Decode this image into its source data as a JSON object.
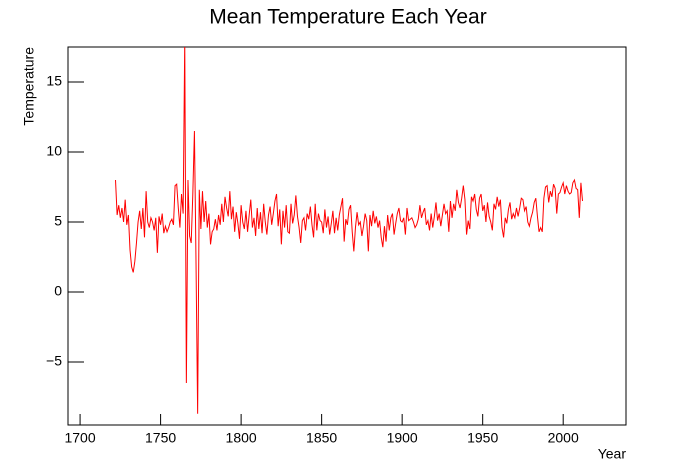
{
  "chart_data": {
    "type": "line",
    "title": "Mean Temperature Each Year",
    "x_label": "Year",
    "y_label": "Temperature",
    "xlim": [
      1692.5,
      2039
    ],
    "ylim": [
      -9.5,
      17.5
    ],
    "xticks": [
      1700,
      1750,
      1800,
      1850,
      1900,
      1950,
      2000
    ],
    "yticks": [
      {
        "value": -5,
        "label": "−5"
      },
      0,
      5,
      10,
      15
    ],
    "series": [
      {
        "color": "#ff0000",
        "x": [
          1722,
          1723,
          1724,
          1725,
          1726,
          1727,
          1728,
          1729,
          1730,
          1731,
          1732,
          1733,
          1734,
          1735,
          1736,
          1737,
          1738,
          1739,
          1740,
          1741,
          1742,
          1743,
          1744,
          1745,
          1746,
          1747,
          1748,
          1749,
          1750,
          1751,
          1752,
          1753,
          1754,
          1755,
          1756,
          1757,
          1758,
          1759,
          1760,
          1761,
          1762,
          1763,
          1764,
          1765,
          1766,
          1767,
          1768,
          1769,
          1770,
          1771,
          1772,
          1773,
          1774,
          1775,
          1776,
          1777,
          1778,
          1779,
          1780,
          1781,
          1782,
          1783,
          1784,
          1785,
          1786,
          1787,
          1788,
          1789,
          1790,
          1791,
          1792,
          1793,
          1794,
          1795,
          1796,
          1797,
          1798,
          1799,
          1800,
          1801,
          1802,
          1803,
          1804,
          1805,
          1806,
          1807,
          1808,
          1809,
          1810,
          1811,
          1812,
          1813,
          1814,
          1815,
          1816,
          1817,
          1818,
          1819,
          1820,
          1821,
          1822,
          1823,
          1824,
          1825,
          1826,
          1827,
          1828,
          1829,
          1830,
          1831,
          1832,
          1833,
          1834,
          1835,
          1836,
          1837,
          1838,
          1839,
          1840,
          1841,
          1842,
          1843,
          1844,
          1845,
          1846,
          1847,
          1848,
          1849,
          1850,
          1851,
          1852,
          1853,
          1854,
          1855,
          1856,
          1857,
          1858,
          1859,
          1860,
          1861,
          1862,
          1863,
          1864,
          1865,
          1866,
          1867,
          1868,
          1869,
          1870,
          1871,
          1872,
          1873,
          1874,
          1875,
          1876,
          1877,
          1878,
          1879,
          1880,
          1881,
          1882,
          1883,
          1884,
          1885,
          1886,
          1887,
          1888,
          1889,
          1890,
          1891,
          1892,
          1893,
          1894,
          1895,
          1896,
          1897,
          1898,
          1899,
          1900,
          1901,
          1902,
          1903,
          1904,
          1905,
          1906,
          1907,
          1908,
          1909,
          1910,
          1911,
          1912,
          1913,
          1914,
          1915,
          1916,
          1917,
          1918,
          1919,
          1920,
          1921,
          1922,
          1923,
          1924,
          1925,
          1926,
          1927,
          1928,
          1929,
          1930,
          1931,
          1932,
          1933,
          1934,
          1935,
          1936,
          1937,
          1938,
          1939,
          1940,
          1941,
          1942,
          1943,
          1944,
          1945,
          1946,
          1947,
          1948,
          1949,
          1950,
          1951,
          1952,
          1953,
          1954,
          1955,
          1956,
          1957,
          1958,
          1959,
          1960,
          1961,
          1962,
          1963,
          1964,
          1965,
          1966,
          1967,
          1968,
          1969,
          1970,
          1971,
          1972,
          1973,
          1974,
          1975,
          1976,
          1977,
          1978,
          1979,
          1980,
          1981,
          1982,
          1983,
          1984,
          1985,
          1986,
          1987,
          1988,
          1989,
          1990,
          1991,
          1992,
          1993,
          1994,
          1995,
          1996,
          1997,
          1998,
          1999,
          2000,
          2001,
          2002,
          2003,
          2004,
          2005,
          2006,
          2007,
          2008,
          2009,
          2010,
          2011,
          2012
        ],
        "values": [
          8.0,
          5.5,
          6.2,
          5.3,
          6.0,
          5.0,
          6.6,
          4.8,
          5.5,
          3.0,
          1.8,
          1.4,
          2.2,
          3.5,
          5.0,
          5.8,
          4.5,
          6.0,
          3.9,
          7.2,
          5.0,
          4.6,
          5.3,
          5.0,
          4.4,
          5.3,
          2.8,
          5.4,
          4.8,
          5.6,
          4.2,
          4.7,
          4.3,
          4.6,
          5.0,
          5.2,
          4.8,
          7.6,
          7.7,
          6.0,
          4.6,
          7.0,
          5.6,
          18.0,
          -6.5,
          8.0,
          4.0,
          3.5,
          7.0,
          11.5,
          2.0,
          -8.7,
          7.3,
          4.5,
          7.2,
          5.0,
          6.5,
          4.6,
          5.6,
          3.4,
          4.3,
          4.5,
          5.2,
          4.4,
          5.5,
          4.8,
          6.3,
          5.0,
          6.8,
          6.0,
          5.4,
          7.2,
          5.2,
          6.1,
          4.3,
          5.7,
          4.9,
          3.8,
          6.2,
          5.0,
          4.5,
          5.8,
          4.3,
          5.5,
          6.6,
          4.6,
          5.3,
          4.0,
          6.0,
          4.5,
          5.7,
          4.2,
          6.3,
          5.0,
          4.1,
          5.5,
          6.1,
          4.8,
          5.6,
          6.5,
          7.0,
          4.7,
          5.9,
          3.4,
          5.8,
          4.6,
          6.2,
          4.3,
          4.2,
          6.3,
          4.9,
          5.5,
          6.9,
          5.4,
          4.6,
          3.5,
          5.1,
          5.3,
          4.4,
          5.6,
          5.2,
          6.1,
          4.8,
          3.9,
          6.3,
          4.4,
          5.6,
          5.1,
          5.0,
          4.2,
          5.9,
          4.6,
          5.4,
          4.1,
          4.9,
          5.8,
          4.2,
          5.3,
          4.4,
          5.5,
          6.1,
          6.7,
          3.6,
          5.2,
          4.8,
          5.9,
          6.2,
          4.3,
          2.9,
          4.6,
          5.7,
          4.8,
          5.0,
          4.0,
          4.7,
          5.6,
          5.1,
          2.9,
          5.5,
          4.7,
          5.8,
          4.9,
          5.4,
          4.6,
          5.1,
          3.9,
          3.2,
          4.7,
          3.6,
          5.5,
          4.4,
          5.3,
          5.6,
          4.1,
          4.9,
          5.6,
          6.0,
          5.1,
          5.0,
          5.3,
          4.1,
          6.0,
          5.1,
          5.2,
          5.3,
          5.0,
          4.6,
          4.8,
          5.2,
          6.2,
          5.3,
          5.7,
          6.0,
          4.8,
          5.1,
          4.4,
          5.6,
          4.6,
          5.4,
          6.4,
          5.1,
          5.6,
          4.7,
          5.5,
          6.3,
          5.6,
          5.8,
          4.3,
          6.5,
          5.3,
          6.3,
          5.8,
          7.3,
          6.4,
          6.0,
          6.7,
          7.6,
          6.6,
          4.1,
          5.1,
          4.5,
          6.8,
          6.5,
          7.0,
          5.9,
          5.4,
          6.7,
          7.0,
          5.8,
          6.2,
          5.0,
          6.4,
          5.4,
          5.0,
          4.4,
          6.3,
          5.9,
          6.8,
          6.1,
          6.6,
          4.6,
          3.9,
          5.3,
          4.9,
          5.9,
          6.4,
          5.2,
          5.6,
          5.3,
          6.0,
          5.4,
          6.0,
          6.7,
          6.6,
          5.8,
          6.1,
          5.0,
          4.7,
          5.3,
          5.7,
          6.4,
          6.7,
          5.4,
          4.3,
          4.6,
          4.3,
          6.7,
          7.5,
          7.6,
          6.4,
          7.2,
          6.8,
          7.7,
          7.4,
          5.6,
          7.0,
          7.1,
          7.5,
          7.8,
          7.0,
          7.6,
          7.2,
          7.0,
          7.1,
          7.8,
          8.0,
          7.4,
          7.3,
          5.3,
          7.8,
          6.5
        ]
      }
    ]
  }
}
